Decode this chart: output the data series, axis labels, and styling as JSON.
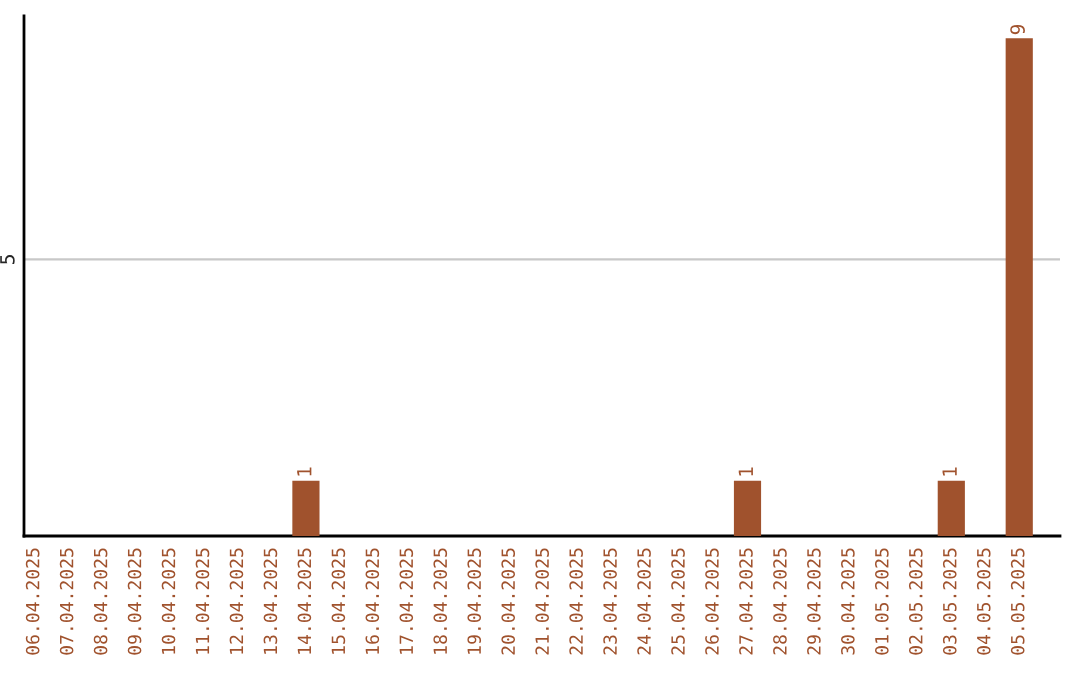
{
  "chart_data": {
    "type": "bar",
    "categories": [
      "06.04.2025",
      "07.04.2025",
      "08.04.2025",
      "09.04.2025",
      "10.04.2025",
      "11.04.2025",
      "12.04.2025",
      "13.04.2025",
      "14.04.2025",
      "15.04.2025",
      "16.04.2025",
      "17.04.2025",
      "18.04.2025",
      "19.04.2025",
      "20.04.2025",
      "21.04.2025",
      "22.04.2025",
      "23.04.2025",
      "24.04.2025",
      "25.04.2025",
      "26.04.2025",
      "27.04.2025",
      "28.04.2025",
      "29.04.2025",
      "30.04.2025",
      "01.05.2025",
      "02.05.2025",
      "03.05.2025",
      "04.05.2025",
      "05.05.2025"
    ],
    "values": [
      0,
      0,
      0,
      0,
      0,
      0,
      0,
      0,
      1,
      0,
      0,
      0,
      0,
      0,
      0,
      0,
      0,
      0,
      0,
      0,
      0,
      1,
      0,
      0,
      0,
      0,
      0,
      1,
      0,
      9
    ],
    "value_labels": [
      null,
      null,
      null,
      null,
      null,
      null,
      null,
      null,
      "1",
      null,
      null,
      null,
      null,
      null,
      null,
      null,
      null,
      null,
      null,
      null,
      null,
      "1",
      null,
      null,
      null,
      null,
      null,
      "1",
      null,
      "9"
    ],
    "color": "#a0522d",
    "ylim": [
      0,
      9.4
    ],
    "yticks": [
      5
    ],
    "grid": "y"
  }
}
